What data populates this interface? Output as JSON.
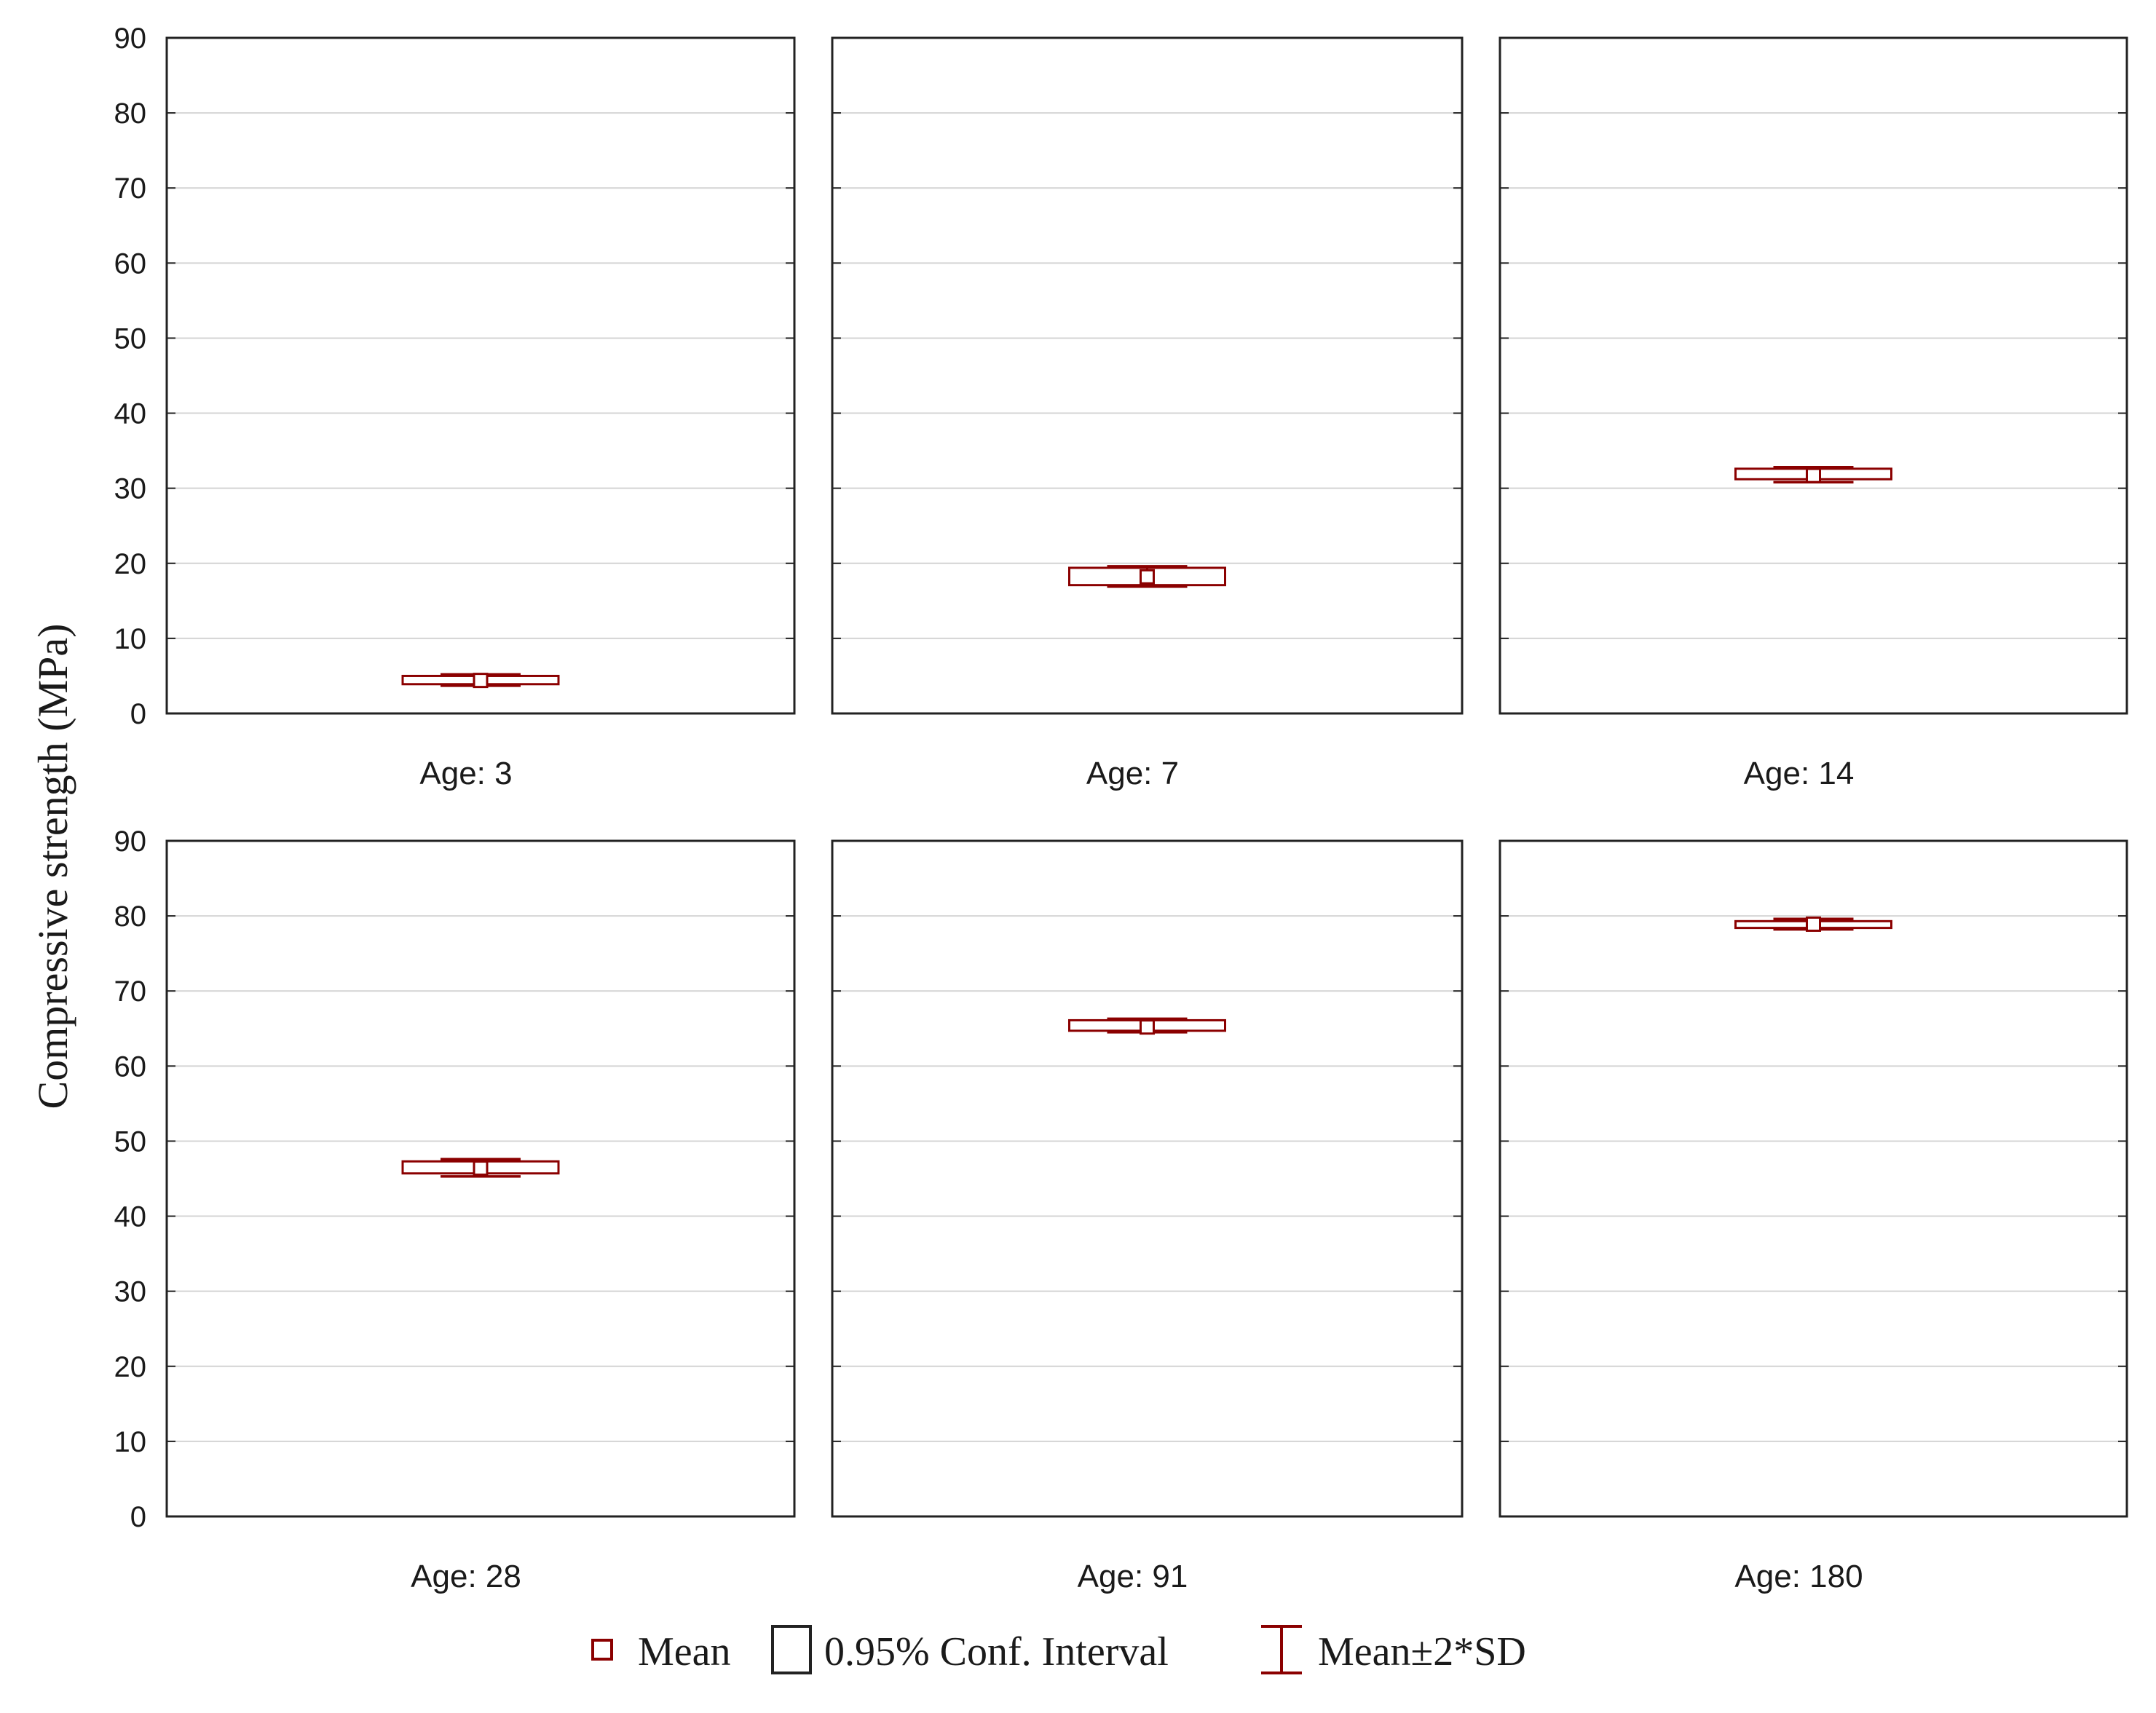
{
  "chart_data": {
    "type": "box",
    "ylabel": "Compressive strength (MPa)",
    "ylim": [
      0,
      90
    ],
    "yticks": [
      0,
      10,
      20,
      30,
      40,
      50,
      60,
      70,
      80,
      90
    ],
    "grid": true,
    "layout": "2x3 panels",
    "colors": {
      "series": "#8b0000",
      "frame": "#222222",
      "grid": "#d4d4d4"
    },
    "panels": [
      {
        "label": "Age: 3",
        "mean": 4.4,
        "ci": [
          3.9,
          5.0
        ],
        "sd2": [
          3.7,
          5.2
        ]
      },
      {
        "label": "Age: 7",
        "mean": 18.2,
        "ci": [
          17.1,
          19.4
        ],
        "sd2": [
          16.9,
          19.6
        ]
      },
      {
        "label": "Age: 14",
        "mean": 31.7,
        "ci": [
          31.2,
          32.6
        ],
        "sd2": [
          30.8,
          32.8
        ]
      },
      {
        "label": "Age: 28",
        "mean": 46.4,
        "ci": [
          45.7,
          47.3
        ],
        "sd2": [
          45.3,
          47.6
        ]
      },
      {
        "label": "Age: 91",
        "mean": 65.2,
        "ci": [
          64.7,
          66.1
        ],
        "sd2": [
          64.5,
          66.3
        ]
      },
      {
        "label": "Age: 180",
        "mean": 78.9,
        "ci": [
          78.4,
          79.3
        ],
        "sd2": [
          78.2,
          79.6
        ]
      }
    ],
    "legend": {
      "position": "bottom",
      "items": [
        {
          "symbol": "mean-square",
          "label": "Mean"
        },
        {
          "symbol": "ci-box",
          "label": "0.95% Conf. Interval"
        },
        {
          "symbol": "sd-whisker",
          "label": "Mean±2*SD"
        }
      ]
    }
  }
}
